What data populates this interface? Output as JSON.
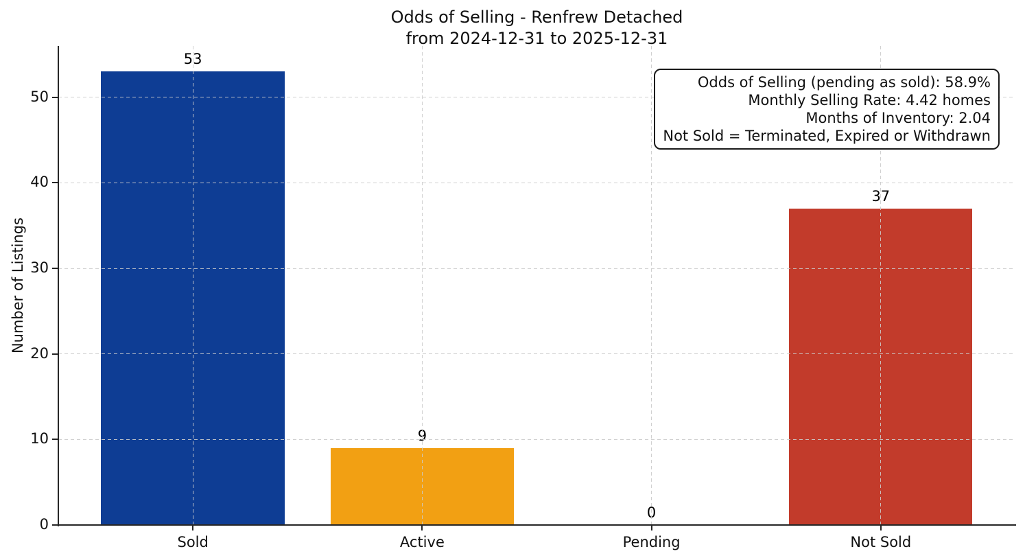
{
  "chart_data": {
    "type": "bar",
    "title_lines": [
      "Odds of Selling - Renfrew Detached",
      "from 2024-12-31 to 2025-12-31"
    ],
    "categories": [
      "Sold",
      "Active",
      "Pending",
      "Not Sold"
    ],
    "values": [
      53,
      9,
      0,
      37
    ],
    "bar_value_labels": [
      "53",
      "9",
      "0",
      "37"
    ],
    "bar_colors": [
      "#0e3d94",
      "#f2a013",
      "#999999",
      "#c23b2b"
    ],
    "ylabel": "Number of Listings",
    "yticks": [
      0,
      10,
      20,
      30,
      40,
      50
    ],
    "ylim": [
      0,
      56
    ],
    "legend_position": "none",
    "grid": {
      "style": "dashed",
      "color": "#cbcbcb",
      "axes": "both",
      "drawn_above_bars": true
    },
    "axis_color": "#262626",
    "text_color": "#111111",
    "annotation": {
      "lines": [
        "Odds of Selling (pending as sold): 58.9%",
        "Monthly Selling Rate: 4.42 homes",
        "Months of Inventory: 2.04",
        "Not Sold = Terminated, Expired or Withdrawn"
      ]
    }
  }
}
